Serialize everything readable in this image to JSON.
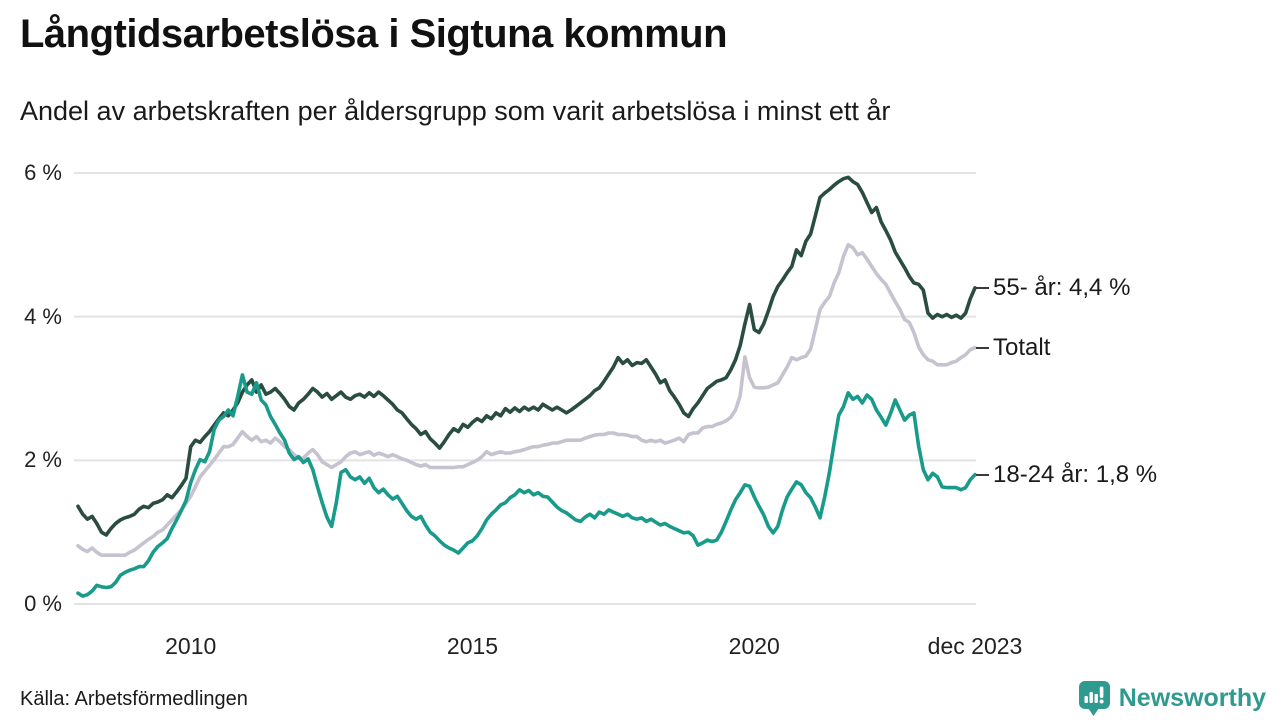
{
  "header": {
    "title": "Långtidsarbetslösa i Sigtuna kommun",
    "subtitle": "Andel av arbetskraften per åldersgrupp som varit arbetslösa i minst ett år"
  },
  "source": {
    "label": "Källa: Arbetsförmedlingen"
  },
  "branding": {
    "name": "Newsworthy",
    "color": "#2F9A8F"
  },
  "chart_data": {
    "type": "line",
    "title": "Långtidsarbetslösa i Sigtuna kommun",
    "subtitle": "Andel av arbetskraften per åldersgrupp som varit arbetslösa i minst ett år",
    "unit": "% av arbetskraften",
    "frequency": "monthly",
    "x_start": "2008-01",
    "x_end": "2023-12",
    "ylim": [
      0,
      6
    ],
    "grid": "horizontal",
    "grid_color": "#E2E2E7",
    "y_ticks": [
      {
        "value": 6,
        "label": "6 %"
      },
      {
        "value": 4,
        "label": "4 %"
      },
      {
        "value": 2,
        "label": "2 %"
      },
      {
        "value": 0,
        "label": "0 %"
      }
    ],
    "x_ticks": [
      {
        "month_index": 24,
        "label": "2010"
      },
      {
        "month_index": 84,
        "label": "2015"
      },
      {
        "month_index": 144,
        "label": "2020"
      },
      {
        "month_index": 191,
        "label": "dec 2023"
      }
    ],
    "series": [
      {
        "name": "55- år",
        "end_label": "55- år: 4,4 %",
        "color": "#2A4C41",
        "values": [
          1.36,
          1.25,
          1.18,
          1.22,
          1.12,
          1.0,
          0.96,
          1.05,
          1.12,
          1.17,
          1.2,
          1.22,
          1.25,
          1.32,
          1.36,
          1.34,
          1.4,
          1.42,
          1.45,
          1.52,
          1.48,
          1.56,
          1.65,
          1.75,
          2.19,
          2.28,
          2.25,
          2.33,
          2.4,
          2.49,
          2.58,
          2.66,
          2.62,
          2.7,
          2.8,
          2.95,
          3.05,
          3.12,
          2.95,
          3.05,
          2.92,
          2.95,
          3.0,
          2.93,
          2.85,
          2.75,
          2.7,
          2.8,
          2.85,
          2.92,
          3.0,
          2.95,
          2.88,
          2.93,
          2.85,
          2.9,
          2.95,
          2.88,
          2.85,
          2.9,
          2.92,
          2.88,
          2.94,
          2.89,
          2.95,
          2.9,
          2.84,
          2.78,
          2.7,
          2.66,
          2.58,
          2.5,
          2.44,
          2.36,
          2.4,
          2.3,
          2.24,
          2.17,
          2.26,
          2.36,
          2.44,
          2.4,
          2.5,
          2.46,
          2.53,
          2.58,
          2.54,
          2.62,
          2.58,
          2.66,
          2.62,
          2.72,
          2.67,
          2.73,
          2.68,
          2.74,
          2.7,
          2.74,
          2.7,
          2.78,
          2.74,
          2.7,
          2.74,
          2.7,
          2.66,
          2.7,
          2.75,
          2.8,
          2.85,
          2.9,
          2.97,
          3.01,
          3.1,
          3.2,
          3.3,
          3.43,
          3.35,
          3.4,
          3.32,
          3.36,
          3.35,
          3.4,
          3.3,
          3.2,
          3.08,
          3.12,
          2.97,
          2.88,
          2.78,
          2.66,
          2.61,
          2.72,
          2.8,
          2.9,
          3.0,
          3.05,
          3.1,
          3.12,
          3.15,
          3.26,
          3.4,
          3.6,
          3.9,
          4.17,
          3.82,
          3.78,
          3.9,
          4.08,
          4.28,
          4.42,
          4.51,
          4.61,
          4.7,
          4.93,
          4.85,
          5.05,
          5.15,
          5.4,
          5.66,
          5.72,
          5.77,
          5.83,
          5.88,
          5.92,
          5.94,
          5.88,
          5.84,
          5.73,
          5.59,
          5.45,
          5.52,
          5.32,
          5.2,
          5.07,
          4.9,
          4.79,
          4.68,
          4.56,
          4.47,
          4.45,
          4.37,
          4.05,
          3.98,
          4.03,
          4.0,
          4.03,
          3.99,
          4.02,
          3.98,
          4.05,
          4.25,
          4.4
        ]
      },
      {
        "name": "Totalt",
        "end_label": "Totalt",
        "color": "#C6C2D0",
        "values": [
          0.81,
          0.76,
          0.73,
          0.78,
          0.72,
          0.68,
          0.68,
          0.68,
          0.68,
          0.68,
          0.68,
          0.72,
          0.75,
          0.8,
          0.85,
          0.9,
          0.94,
          1.0,
          1.03,
          1.1,
          1.17,
          1.24,
          1.31,
          1.4,
          1.5,
          1.63,
          1.77,
          1.85,
          1.93,
          2.01,
          2.1,
          2.19,
          2.19,
          2.22,
          2.31,
          2.4,
          2.33,
          2.28,
          2.33,
          2.26,
          2.28,
          2.24,
          2.31,
          2.26,
          2.19,
          2.15,
          2.08,
          2.03,
          2.03,
          2.1,
          2.15,
          2.08,
          1.98,
          1.94,
          1.9,
          1.94,
          1.98,
          2.05,
          2.1,
          2.12,
          2.08,
          2.1,
          2.12,
          2.07,
          2.1,
          2.08,
          2.05,
          2.08,
          2.05,
          2.02,
          2.0,
          1.97,
          1.94,
          1.92,
          1.94,
          1.9,
          1.9,
          1.9,
          1.9,
          1.9,
          1.9,
          1.91,
          1.91,
          1.94,
          1.97,
          2.0,
          2.05,
          2.12,
          2.08,
          2.1,
          2.12,
          2.1,
          2.1,
          2.12,
          2.13,
          2.15,
          2.17,
          2.19,
          2.19,
          2.21,
          2.22,
          2.24,
          2.24,
          2.26,
          2.28,
          2.28,
          2.28,
          2.28,
          2.31,
          2.33,
          2.35,
          2.36,
          2.36,
          2.38,
          2.38,
          2.36,
          2.36,
          2.35,
          2.33,
          2.33,
          2.28,
          2.26,
          2.28,
          2.26,
          2.28,
          2.24,
          2.26,
          2.28,
          2.31,
          2.26,
          2.36,
          2.38,
          2.38,
          2.45,
          2.47,
          2.47,
          2.5,
          2.52,
          2.55,
          2.6,
          2.7,
          2.9,
          3.44,
          3.15,
          3.02,
          3.01,
          3.01,
          3.02,
          3.05,
          3.08,
          3.19,
          3.3,
          3.43,
          3.4,
          3.43,
          3.45,
          3.55,
          3.82,
          4.1,
          4.2,
          4.28,
          4.47,
          4.61,
          4.84,
          5.0,
          4.96,
          4.86,
          4.89,
          4.8,
          4.7,
          4.6,
          4.52,
          4.45,
          4.33,
          4.21,
          4.1,
          3.96,
          3.92,
          3.78,
          3.58,
          3.47,
          3.4,
          3.38,
          3.33,
          3.33,
          3.33,
          3.36,
          3.38,
          3.43,
          3.47,
          3.54,
          3.57
        ]
      },
      {
        "name": "18-24 år",
        "end_label": "18-24 år: 1,8 %",
        "color": "#189B8A",
        "values": [
          0.15,
          0.11,
          0.13,
          0.18,
          0.26,
          0.24,
          0.23,
          0.24,
          0.3,
          0.4,
          0.44,
          0.47,
          0.49,
          0.52,
          0.52,
          0.6,
          0.72,
          0.8,
          0.85,
          0.91,
          1.05,
          1.17,
          1.3,
          1.44,
          1.69,
          1.87,
          2.01,
          1.98,
          2.12,
          2.43,
          2.56,
          2.61,
          2.7,
          2.62,
          2.89,
          3.19,
          2.95,
          2.92,
          3.08,
          2.84,
          2.77,
          2.61,
          2.5,
          2.38,
          2.28,
          2.1,
          2.01,
          2.05,
          1.97,
          2.02,
          1.87,
          1.63,
          1.41,
          1.21,
          1.08,
          1.41,
          1.83,
          1.87,
          1.77,
          1.73,
          1.77,
          1.68,
          1.75,
          1.62,
          1.55,
          1.6,
          1.52,
          1.46,
          1.5,
          1.4,
          1.3,
          1.22,
          1.18,
          1.22,
          1.1,
          1.0,
          0.95,
          0.88,
          0.82,
          0.78,
          0.75,
          0.71,
          0.78,
          0.85,
          0.88,
          0.95,
          1.05,
          1.17,
          1.25,
          1.31,
          1.38,
          1.41,
          1.48,
          1.52,
          1.59,
          1.55,
          1.58,
          1.52,
          1.55,
          1.5,
          1.49,
          1.42,
          1.35,
          1.3,
          1.27,
          1.22,
          1.17,
          1.15,
          1.21,
          1.25,
          1.2,
          1.28,
          1.25,
          1.31,
          1.28,
          1.25,
          1.22,
          1.25,
          1.2,
          1.18,
          1.2,
          1.15,
          1.18,
          1.14,
          1.1,
          1.12,
          1.08,
          1.05,
          1.02,
          0.99,
          1.0,
          0.95,
          0.82,
          0.85,
          0.89,
          0.87,
          0.89,
          1.0,
          1.15,
          1.31,
          1.45,
          1.55,
          1.66,
          1.64,
          1.49,
          1.36,
          1.24,
          1.08,
          0.99,
          1.08,
          1.31,
          1.49,
          1.6,
          1.7,
          1.66,
          1.55,
          1.48,
          1.35,
          1.2,
          1.49,
          1.83,
          2.24,
          2.63,
          2.75,
          2.94,
          2.85,
          2.89,
          2.8,
          2.91,
          2.85,
          2.7,
          2.6,
          2.49,
          2.65,
          2.84,
          2.7,
          2.56,
          2.63,
          2.66,
          2.2,
          1.87,
          1.73,
          1.82,
          1.77,
          1.63,
          1.62,
          1.62,
          1.62,
          1.59,
          1.62,
          1.73,
          1.8
        ]
      }
    ]
  }
}
